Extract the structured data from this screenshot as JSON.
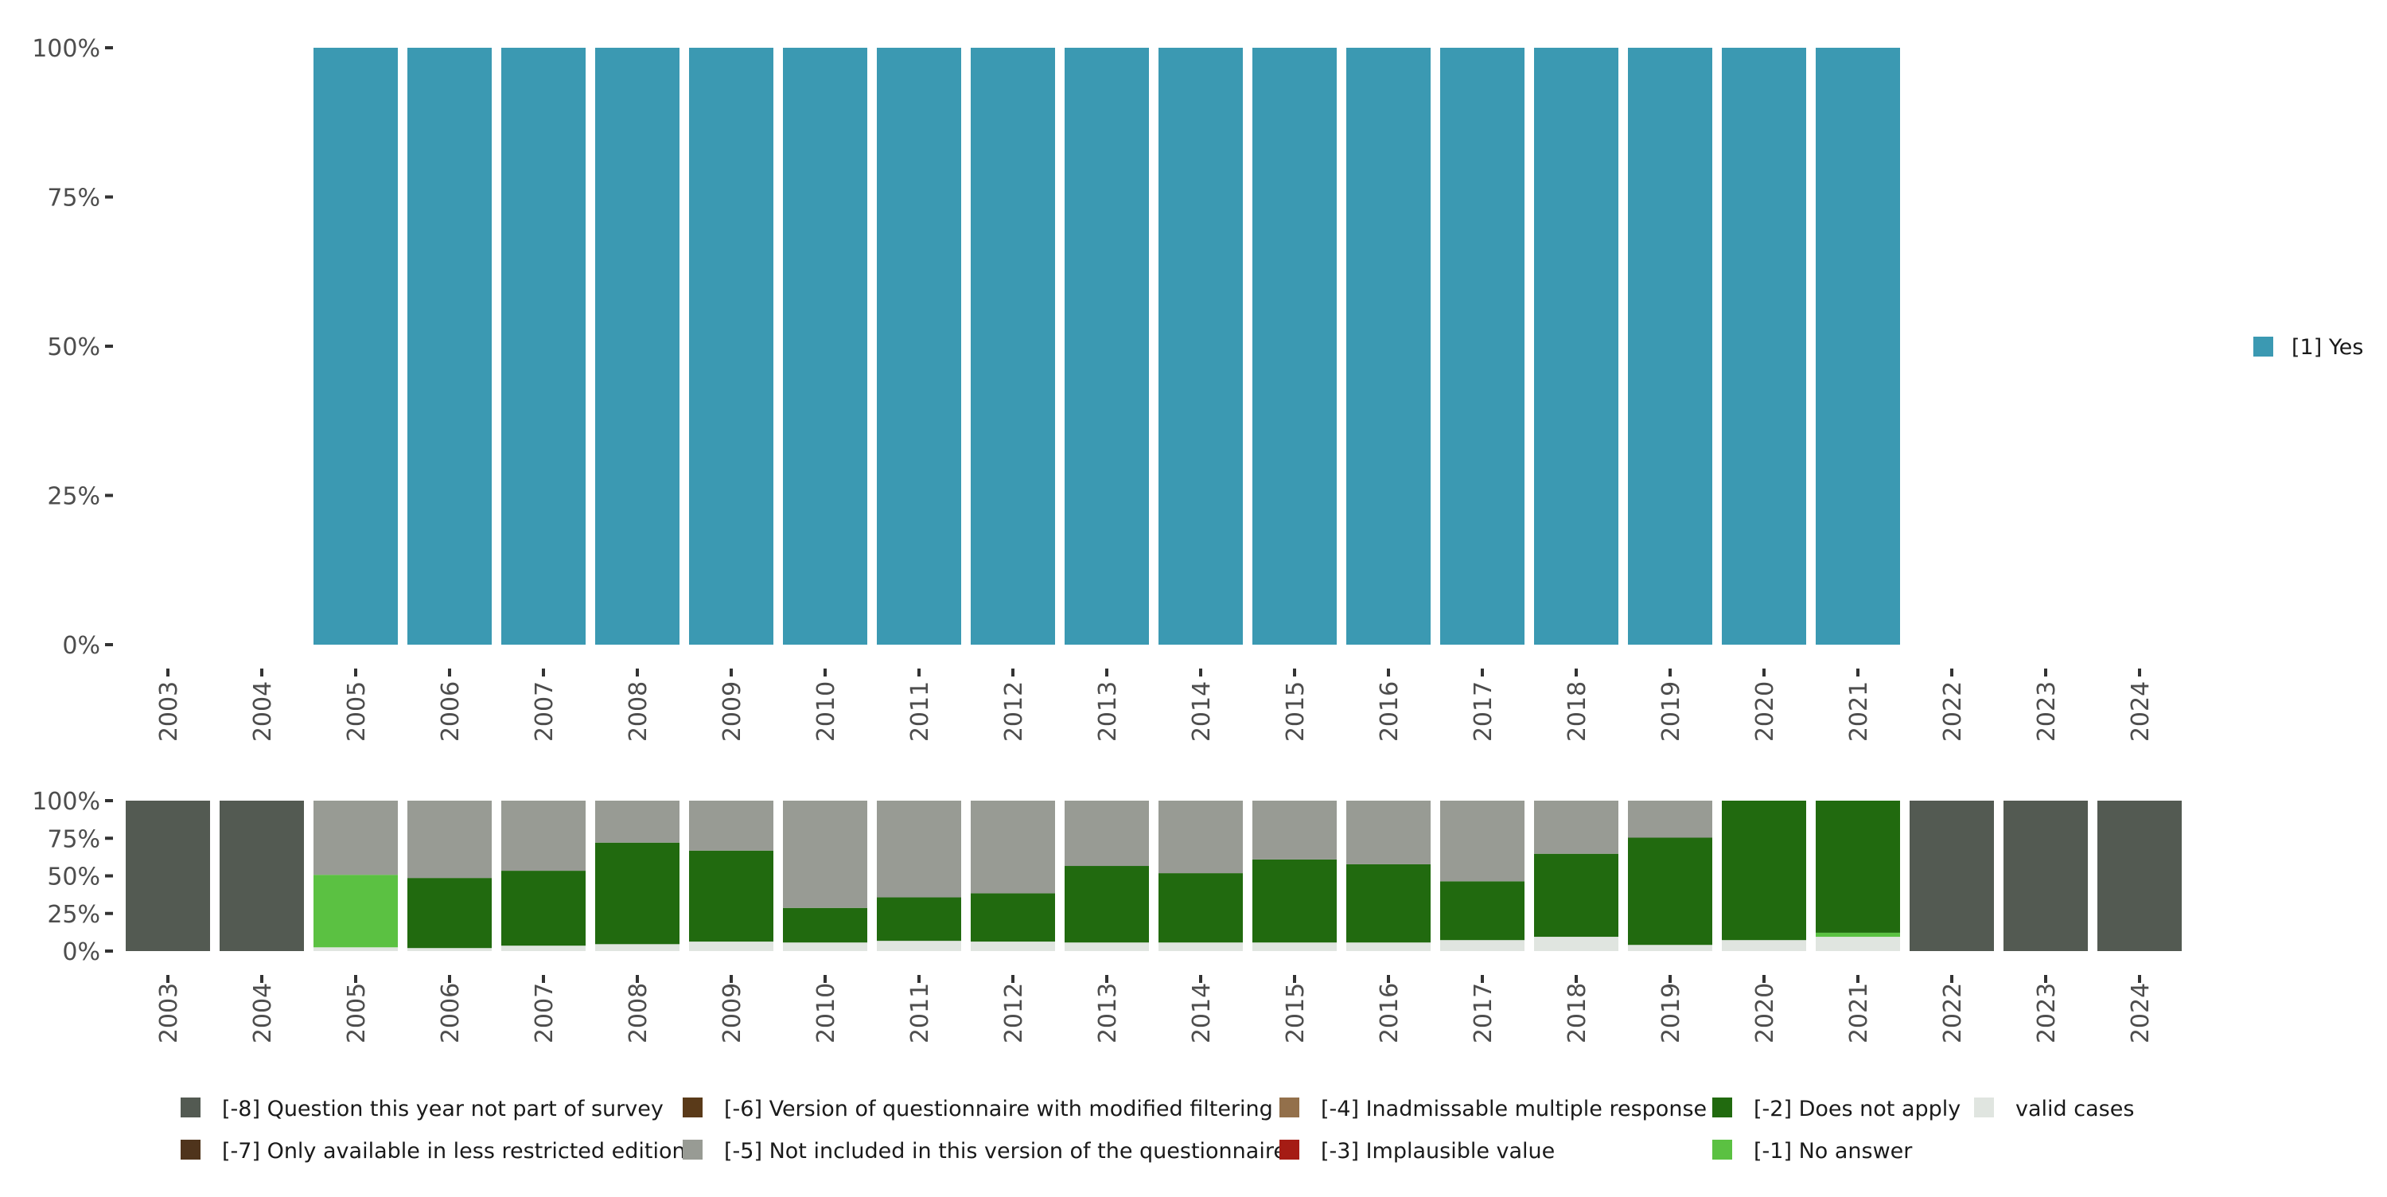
{
  "chart_data": [
    {
      "type": "bar",
      "stacked": true,
      "title": "",
      "xlabel": "",
      "ylabel": "",
      "ylim": [
        0,
        100
      ],
      "yticks": [
        "0%",
        "25%",
        "50%",
        "75%",
        "100%"
      ],
      "categories": [
        "2003",
        "2004",
        "2005",
        "2006",
        "2007",
        "2008",
        "2009",
        "2010",
        "2011",
        "2012",
        "2013",
        "2014",
        "2015",
        "2016",
        "2017",
        "2018",
        "2019",
        "2020",
        "2021",
        "2022",
        "2023",
        "2024"
      ],
      "series": [
        {
          "name": "[1] Yes",
          "color": "#3b99b2",
          "values": [
            0,
            0,
            100,
            100,
            100,
            100,
            100,
            100,
            100,
            100,
            100,
            100,
            100,
            100,
            100,
            100,
            100,
            100,
            100,
            0,
            0,
            0
          ]
        }
      ],
      "legend_position": "right"
    },
    {
      "type": "bar",
      "stacked": true,
      "ylim": [
        0,
        100
      ],
      "yticks": [
        "0%",
        "25%",
        "50%",
        "75%",
        "100%"
      ],
      "categories": [
        "2003",
        "2004",
        "2005",
        "2006",
        "2007",
        "2008",
        "2009",
        "2010",
        "2011",
        "2012",
        "2013",
        "2014",
        "2015",
        "2016",
        "2017",
        "2018",
        "2019",
        "2020",
        "2021",
        "2022",
        "2023",
        "2024"
      ],
      "series": [
        {
          "name": "valid cases",
          "color": "#e0e5e0",
          "values": [
            0,
            0,
            2.5,
            2,
            3.6,
            4.6,
            6.3,
            5.7,
            6.8,
            6.3,
            5.7,
            5.7,
            5.7,
            5.7,
            7.3,
            9.5,
            4.1,
            7.3,
            9.5,
            0,
            0,
            0
          ]
        },
        {
          "name": "[-1] No answer",
          "color": "#5bc142",
          "values": [
            0,
            0,
            48.2,
            0,
            0,
            0,
            0,
            0,
            0,
            0,
            0,
            0,
            0,
            0,
            0,
            0,
            0,
            0,
            2.7,
            0,
            0,
            0
          ]
        },
        {
          "name": "[-2] Does not apply",
          "color": "#216a0f",
          "values": [
            0,
            0,
            0,
            46.6,
            49.8,
            67.5,
            60.5,
            23,
            28.9,
            32.1,
            50.9,
            46.1,
            55.2,
            52,
            39.1,
            55.2,
            71.3,
            92.7,
            87.8,
            0,
            0,
            0
          ]
        },
        {
          "name": "[-3] Implausible value",
          "color": "#a51c14",
          "values": [
            0,
            0,
            0,
            0,
            0,
            0,
            0,
            0,
            0,
            0,
            0,
            0,
            0,
            0,
            0,
            0,
            0,
            0,
            0,
            0,
            0,
            0
          ]
        },
        {
          "name": "[-4] Inadmissable multiple response",
          "color": "#93704b",
          "values": [
            0,
            0,
            0,
            0,
            0,
            0,
            0,
            0,
            0,
            0,
            0,
            0,
            0,
            0,
            0,
            0,
            0,
            0,
            0,
            0,
            0,
            0
          ]
        },
        {
          "name": "[-5] Not included in this version of the questionnaire",
          "color": "#989b94",
          "values": [
            0,
            0,
            49.3,
            51.4,
            46.6,
            27.9,
            33.2,
            71.3,
            64.3,
            61.6,
            43.4,
            48.2,
            39.1,
            42.3,
            53.6,
            35.3,
            24.6,
            0,
            0,
            0,
            0,
            0
          ]
        },
        {
          "name": "[-6] Version of questionnaire with modified filtering",
          "color": "#5a3a19",
          "values": [
            0,
            0,
            0,
            0,
            0,
            0,
            0,
            0,
            0,
            0,
            0,
            0,
            0,
            0,
            0,
            0,
            0,
            0,
            0,
            0,
            0,
            0
          ]
        },
        {
          "name": "[-7] Only available in less restricted edition",
          "color": "#4f341c",
          "values": [
            0,
            0,
            0,
            0,
            0,
            0,
            0,
            0,
            0,
            0,
            0,
            0,
            0,
            0,
            0,
            0,
            0,
            0,
            0,
            0,
            0,
            0
          ]
        },
        {
          "name": "[-8] Question this year not part of survey",
          "color": "#535a52",
          "values": [
            100,
            100,
            0,
            0,
            0,
            0,
            0,
            0,
            0,
            0,
            0,
            0,
            0,
            0,
            0,
            0,
            0,
            0,
            0,
            100,
            100,
            100
          ]
        }
      ],
      "legend_order": [
        "[-8] Question this year not part of survey",
        "[-7] Only available in less restricted edition",
        "[-6] Version of questionnaire with modified filtering",
        "[-5] Not included in this version of the questionnaire",
        "[-4] Inadmissable multiple response",
        "[-3] Implausible value",
        "[-2] Does not apply",
        "[-1] No answer",
        "valid cases"
      ],
      "legend_position": "bottom"
    }
  ]
}
